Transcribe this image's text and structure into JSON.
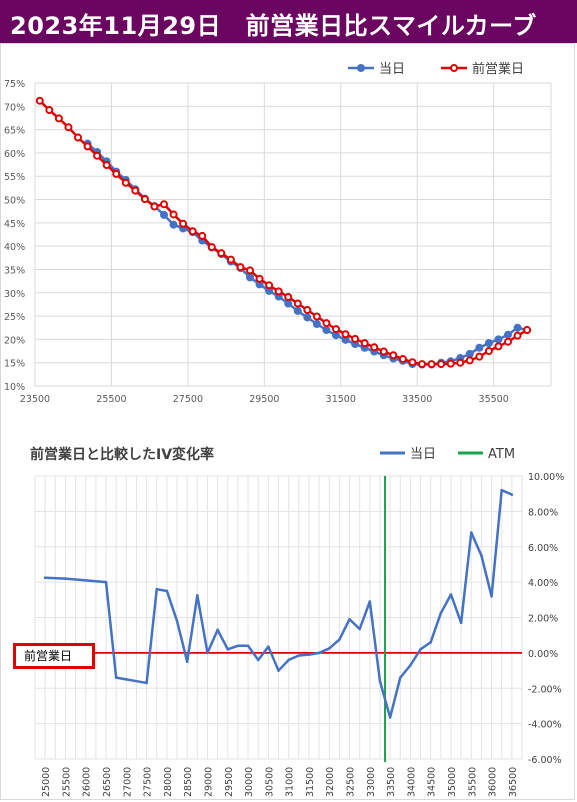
{
  "title": "2023年11月29日　前営業日比スマイルカーブ",
  "colors": {
    "title_bg": "#6a0560",
    "current": "#4472c4",
    "previous": "#e00000",
    "atm": "#1aa34a",
    "iv_line": "#4472c4",
    "zero_line": "#e00000"
  },
  "chart_data": [
    {
      "type": "line",
      "title": "",
      "legend": "top-right",
      "grid": true,
      "xlim": [
        23500,
        37000
      ],
      "ylim": [
        10,
        75
      ],
      "x_ticks": [
        "23500",
        "25500",
        "27500",
        "29500",
        "31500",
        "33500",
        "35500"
      ],
      "y_ticks": [
        "10%",
        "15%",
        "20%",
        "25%",
        "30%",
        "35%",
        "40%",
        "45%",
        "50%",
        "55%",
        "60%",
        "65%",
        "70%",
        "75%"
      ],
      "series": [
        {
          "name": "当日",
          "x": [
            24875,
            25125,
            25375,
            25625,
            25875,
            26125,
            26375,
            26625,
            26875,
            27125,
            27375,
            27625,
            27875,
            28125,
            28375,
            28625,
            28875,
            29125,
            29375,
            29625,
            29875,
            30125,
            30375,
            30625,
            30875,
            31125,
            31375,
            31625,
            31875,
            32125,
            32375,
            32625,
            32875,
            33125,
            33375,
            33625,
            33875,
            34125,
            34375,
            34625,
            34875,
            35125,
            35375,
            35625,
            35875,
            36125,
            36375
          ],
          "values": [
            62.0,
            60.2,
            58.2,
            56.0,
            54.2,
            52.2,
            50.2,
            48.6,
            46.7,
            44.6,
            43.8,
            43.0,
            41.2,
            39.7,
            38.3,
            36.7,
            35.3,
            33.3,
            31.8,
            30.4,
            29.2,
            27.7,
            26.1,
            24.7,
            23.3,
            22.0,
            20.9,
            19.9,
            19.0,
            18.2,
            17.4,
            16.6,
            15.9,
            15.4,
            14.7,
            14.6,
            14.6,
            15.0,
            15.3,
            16.0,
            16.9,
            18.2,
            19.2,
            20.0,
            21.0,
            22.5,
            22.0
          ]
        },
        {
          "name": "前営業日",
          "x": [
            23625,
            23875,
            24125,
            24375,
            24625,
            24875,
            25125,
            25375,
            25625,
            25875,
            26125,
            26375,
            26625,
            26875,
            27125,
            27375,
            27625,
            27875,
            28125,
            28375,
            28625,
            28875,
            29125,
            29375,
            29625,
            29875,
            30125,
            30375,
            30625,
            30875,
            31125,
            31375,
            31625,
            31875,
            32125,
            32375,
            32625,
            32875,
            33125,
            33375,
            33625,
            33875,
            34125,
            34375,
            34625,
            34875,
            35125,
            35375,
            35625,
            35875,
            36125,
            36375
          ],
          "values": [
            71.2,
            69.2,
            67.4,
            65.5,
            63.3,
            61.4,
            59.4,
            57.4,
            55.5,
            53.6,
            51.9,
            50.1,
            48.5,
            49.0,
            46.8,
            44.8,
            43.2,
            42.2,
            39.8,
            38.5,
            37.1,
            35.5,
            34.8,
            33.0,
            31.6,
            30.3,
            29.1,
            27.7,
            26.3,
            24.9,
            23.5,
            22.2,
            21.1,
            20.1,
            19.2,
            18.3,
            17.4,
            16.6,
            15.8,
            15.1,
            14.7,
            14.7,
            14.7,
            14.8,
            15.0,
            15.5,
            16.3,
            17.5,
            18.5,
            19.5,
            20.8,
            22.0
          ]
        }
      ]
    },
    {
      "type": "line",
      "title": "前営業日と比較したIV変化率",
      "legend": "top-right",
      "grid": true,
      "y_axis_side": "right",
      "ylim": [
        -6,
        10
      ],
      "y_ticks": [
        "-6.00%",
        "-4.00%",
        "-2.00%",
        "0.00%",
        "2.00%",
        "4.00%",
        "6.00%",
        "8.00%",
        "10.00%"
      ],
      "categories": [
        "25000",
        "25500",
        "26000",
        "26500",
        "27000",
        "27500",
        "28000",
        "28500",
        "29000",
        "29500",
        "30000",
        "30500",
        "31000",
        "31500",
        "32000",
        "32500",
        "33000",
        "33500",
        "34000",
        "34500",
        "35000",
        "35500",
        "36000",
        "36500"
      ],
      "series": [
        {
          "name": "当日",
          "x": [
            25000,
            25500,
            26500,
            26750,
            27500,
            27750,
            28000,
            28250,
            28500,
            28750,
            29000,
            29250,
            29500,
            29750,
            30000,
            30250,
            30500,
            30750,
            31000,
            31250,
            31500,
            31750,
            32000,
            32250,
            32500,
            32750,
            33000,
            33250,
            33500,
            33750,
            34000,
            34250,
            34500,
            34750,
            35000,
            35250,
            35500,
            35750,
            36000,
            36250,
            36500
          ],
          "values": [
            4.25,
            4.2,
            4.0,
            -1.4,
            -1.7,
            3.6,
            3.5,
            1.8,
            -0.5,
            3.25,
            0.0,
            1.3,
            0.2,
            0.4,
            0.4,
            -0.4,
            0.35,
            -1.0,
            -0.4,
            -0.15,
            -0.1,
            0.0,
            0.25,
            0.75,
            1.9,
            1.35,
            2.9,
            -1.6,
            -3.65,
            -1.4,
            -0.7,
            0.2,
            0.6,
            2.25,
            3.3,
            1.7,
            6.8,
            5.5,
            3.2,
            9.2,
            8.95
          ]
        },
        {
          "name": "ATM",
          "x": 33375
        }
      ],
      "annotations": [
        {
          "label": "前営業日",
          "y": 0
        }
      ]
    }
  ]
}
